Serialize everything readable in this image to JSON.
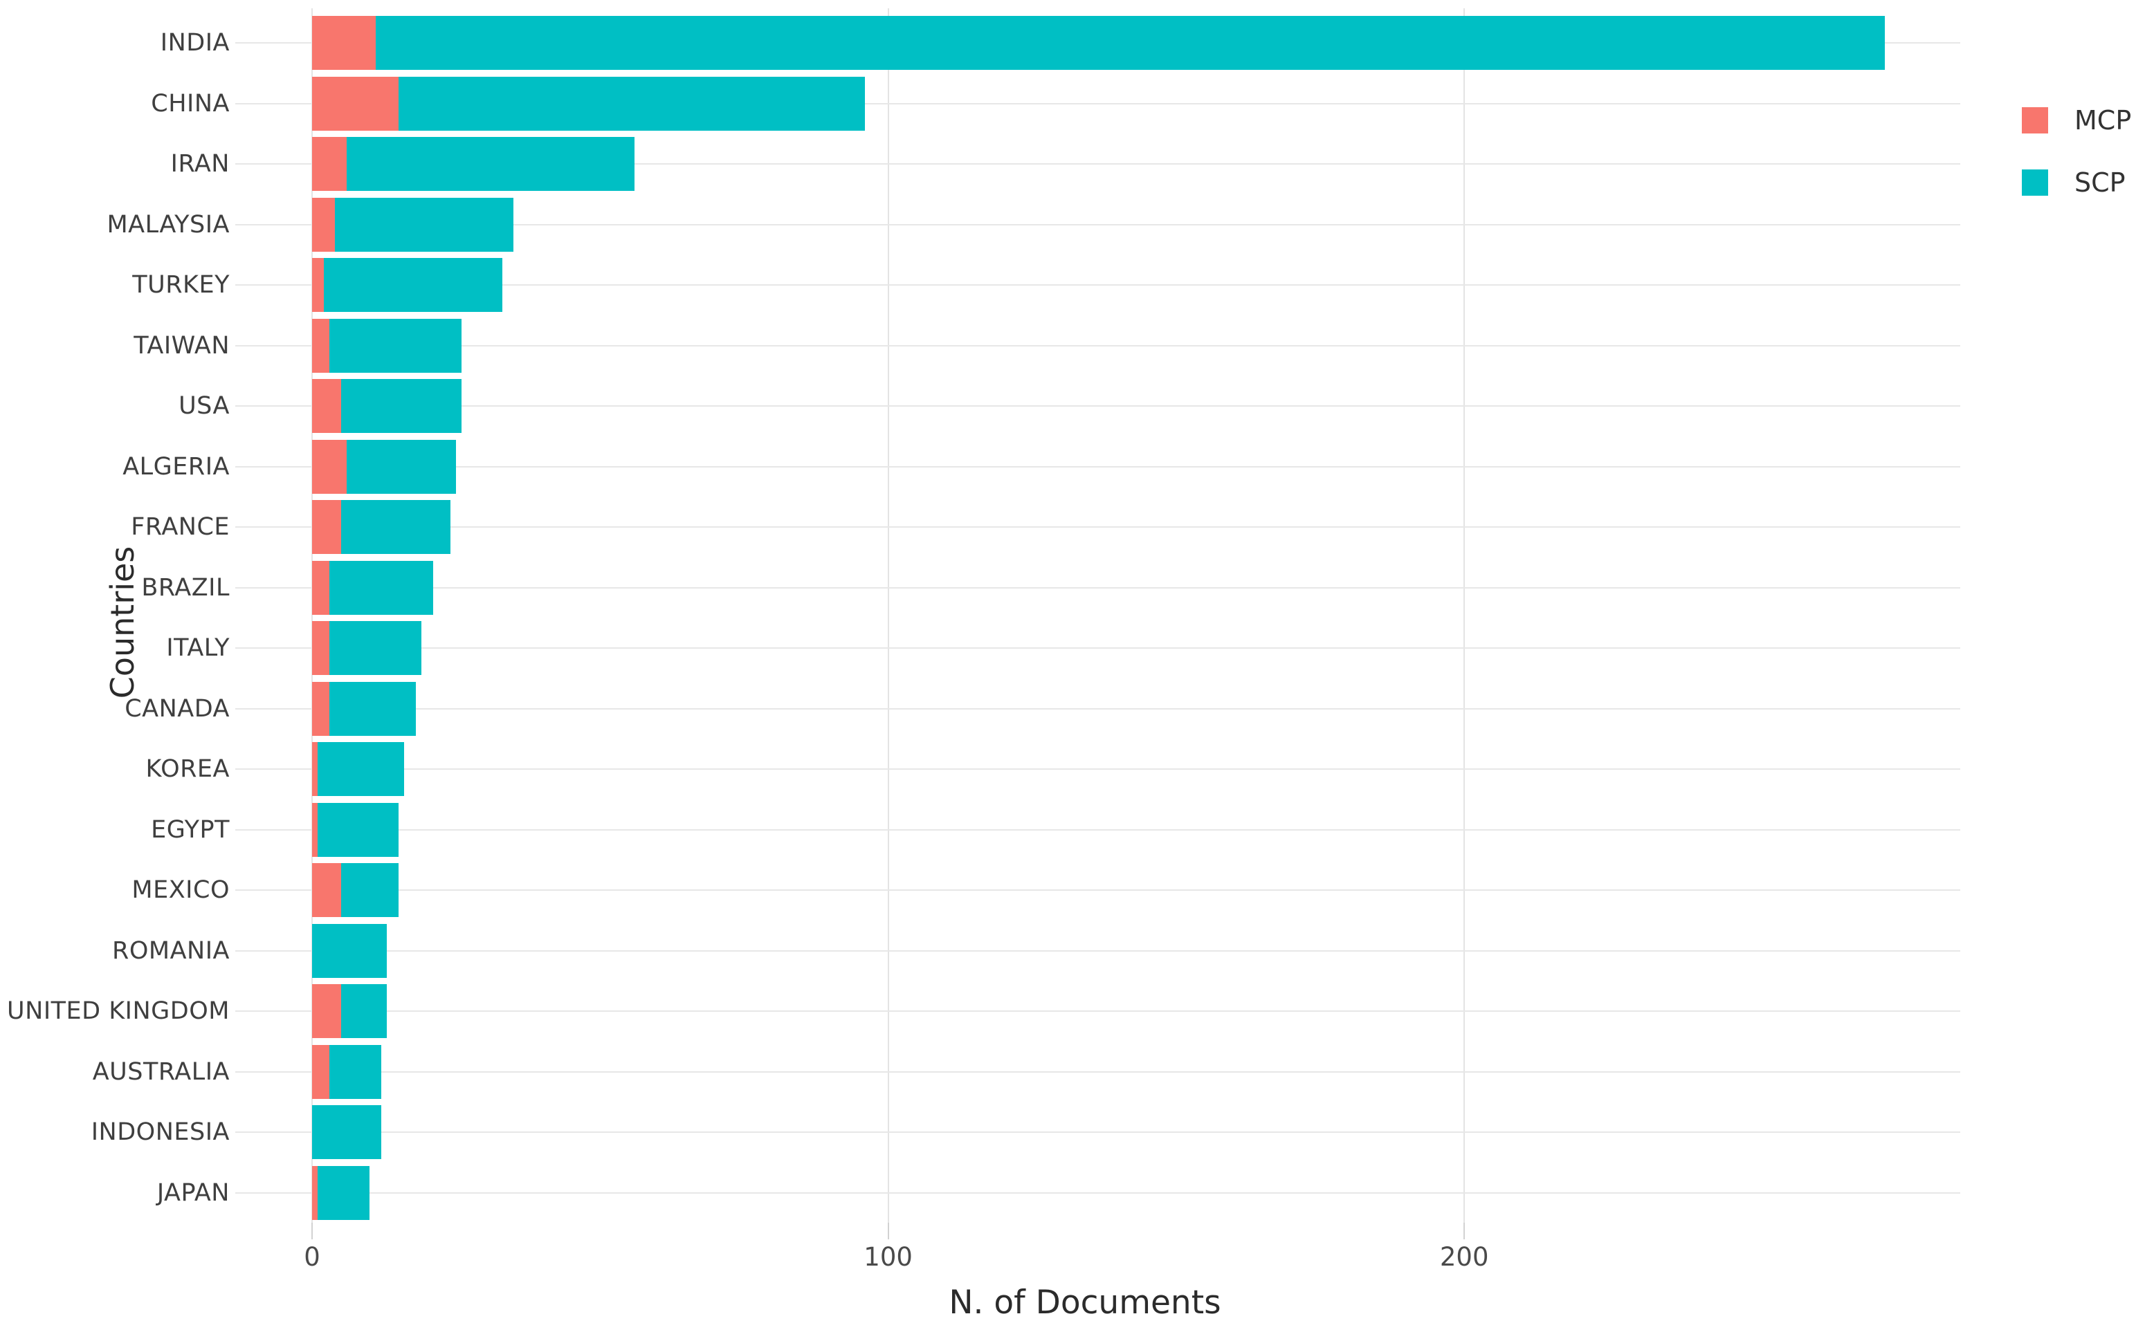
{
  "chart_data": {
    "type": "bar",
    "orientation": "horizontal",
    "stacked": true,
    "title": "",
    "xlabel": "N. of Documents",
    "ylabel": "Countries",
    "categories": [
      "INDIA",
      "CHINA",
      "IRAN",
      "MALAYSIA",
      "TURKEY",
      "TAIWAN",
      "USA",
      "ALGERIA",
      "FRANCE",
      "BRAZIL",
      "ITALY",
      "CANADA",
      "KOREA",
      "EGYPT",
      "MEXICO",
      "ROMANIA",
      "UNITED KINGDOM",
      "AUSTRALIA",
      "INDONESIA",
      "JAPAN"
    ],
    "series": [
      {
        "name": "MCP",
        "color": "#F8766D",
        "values": [
          11,
          15,
          6,
          4,
          2,
          3,
          5,
          6,
          5,
          3,
          3,
          3,
          1,
          1,
          5,
          0,
          5,
          3,
          0,
          1
        ]
      },
      {
        "name": "SCP",
        "color": "#00BFC4",
        "values": [
          262,
          81,
          50,
          31,
          31,
          23,
          21,
          19,
          19,
          18,
          16,
          15,
          15,
          14,
          10,
          13,
          8,
          9,
          12,
          9
        ]
      }
    ],
    "totals": [
      273,
      96,
      56,
      35,
      33,
      26,
      26,
      25,
      24,
      21,
      19,
      18,
      16,
      15,
      15,
      13,
      13,
      12,
      12,
      10
    ],
    "x_ticks": [
      0,
      100,
      200
    ],
    "xlim": [
      0,
      286
    ],
    "grid": "light vertical lines at x ticks, light horizontal leader line per category",
    "legend_position": "top-right",
    "background_color": "#ffffff"
  },
  "legend": {
    "items": [
      {
        "label": "MCP",
        "color": "#F8766D"
      },
      {
        "label": "SCP",
        "color": "#00BFC4"
      }
    ]
  }
}
